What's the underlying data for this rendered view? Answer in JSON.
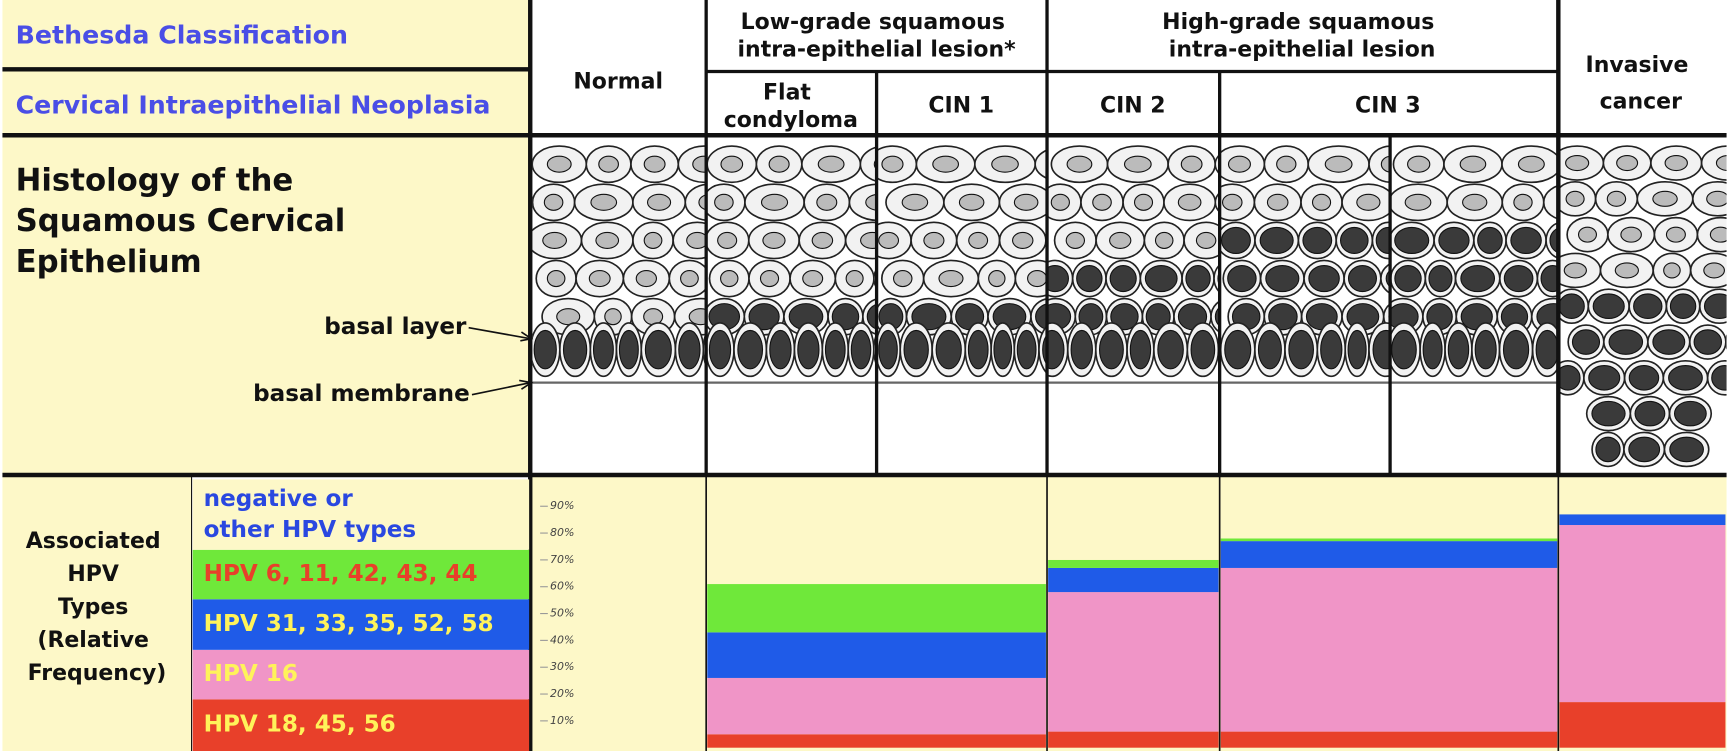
{
  "header": {
    "bethesda": "Bethesda Classification",
    "cin": "Cervical Intraepithelial Neoplasia",
    "normal": "Normal",
    "lsil": "Low-grade squamous intra-epithelial lesion*",
    "hsil": "High-grade squamous intra-epithelial lesion",
    "flat": "Flat condyloma",
    "cin1": "CIN 1",
    "cin2": "CIN 2",
    "cin3": "CIN 3",
    "invasive": "Invasive cancer"
  },
  "histology": {
    "title": "Histology of the Squamous Cervical Epithelium",
    "basal_layer": "basal layer",
    "basal_membrane": "basal membrane"
  },
  "chart_data": {
    "type": "bar",
    "stacked": true,
    "title": "Associated HPV Types (Relative Frequency)",
    "categories": [
      null,
      null,
      null,
      null
    ],
    "series": [
      {
        "name": "HPV 18, 45, 56",
        "color": "#e8402a",
        "values": [
          5,
          6,
          6,
          17
        ]
      },
      {
        "name": "HPV 16",
        "color": "#f095c7",
        "values": [
          21,
          52,
          61,
          66
        ]
      },
      {
        "name": "HPV 31, 33, 35, 52, 58",
        "color": "#1f5be8",
        "values": [
          17,
          9,
          10,
          4
        ]
      },
      {
        "name": "HPV 6, 11, 42, 43, 44",
        "color": "#6fe83a",
        "values": [
          18,
          3,
          1,
          0
        ]
      },
      {
        "name": "negative or other HPV types",
        "color": "#fdf8c8",
        "values": [
          39,
          30,
          22,
          13
        ]
      }
    ],
    "ylim": [
      0,
      100
    ],
    "yticks": [
      {
        "value": 10,
        "label": "10%"
      },
      {
        "value": 20,
        "label": "20%"
      },
      {
        "value": 30,
        "label": "30%"
      },
      {
        "value": 40,
        "label": "40%"
      },
      {
        "value": 50,
        "label": "50%"
      },
      {
        "value": 60,
        "label": "60%"
      },
      {
        "value": 70,
        "label": "70%"
      },
      {
        "value": 80,
        "label": "80%"
      },
      {
        "value": 90,
        "label": "90%"
      }
    ]
  }
}
